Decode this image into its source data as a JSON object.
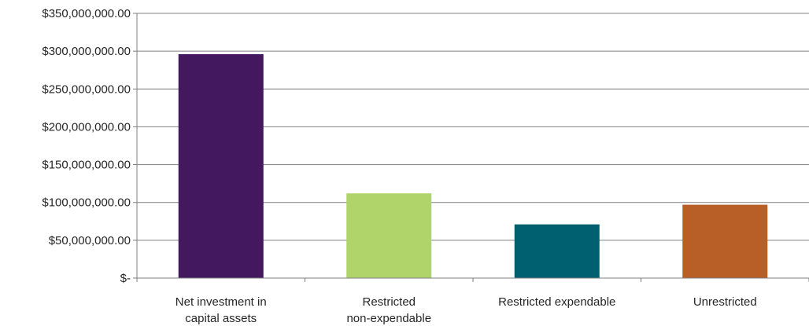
{
  "chart_data": {
    "type": "bar",
    "categories": [
      [
        "Net investment in",
        "capital assets"
      ],
      [
        "Restricted",
        "non-expendable"
      ],
      [
        "Restricted expendable"
      ],
      [
        "Unrestricted"
      ]
    ],
    "values": [
      296000000,
      112000000,
      71000000,
      97000000
    ],
    "colors": [
      "#43185f",
      "#b0d46a",
      "#006070",
      "#b85e27"
    ],
    "ylim": [
      0,
      350000000
    ],
    "y_ticks": [
      0,
      50000000,
      100000000,
      150000000,
      200000000,
      250000000,
      300000000,
      350000000
    ],
    "y_tick_labels": [
      "$-",
      "$50,000,000.00",
      "$100,000,000.00",
      "$150,000,000.00",
      "$200,000,000.00",
      "$250,000,000.00",
      "$300,000,000.00",
      "$350,000,000.00"
    ],
    "grid": true,
    "legend": "none"
  }
}
